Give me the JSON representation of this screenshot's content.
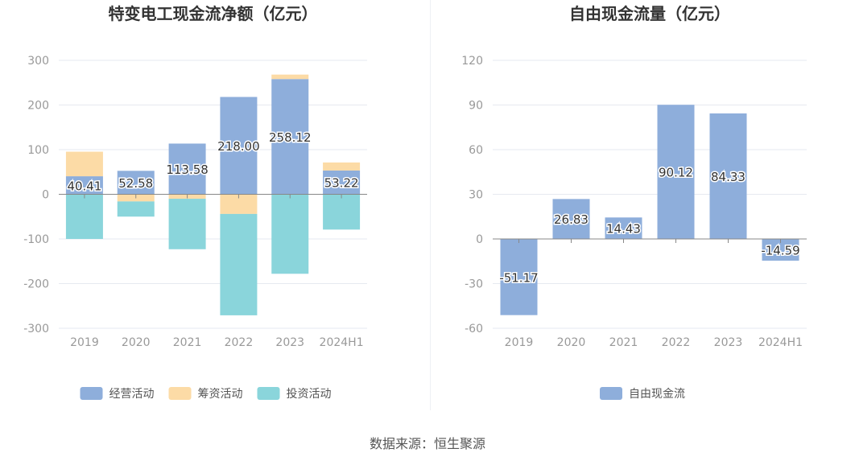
{
  "source_label": "数据来源：恒生聚源",
  "colors": {
    "operating": "#8eaedb",
    "financing": "#fcdba6",
    "investing": "#8ad5db",
    "free_cash": "#8eaedb",
    "grid": "#e6e9f0",
    "axis_label": "#999999",
    "zero_line": "#888888"
  },
  "chart_data": [
    {
      "type": "bar",
      "stacked": true,
      "title": "特变电工现金流净额（亿元）",
      "categories": [
        "2019",
        "2020",
        "2021",
        "2022",
        "2023",
        "2024H1"
      ],
      "ylim": [
        -300,
        300
      ],
      "yticks": [
        300,
        200,
        100,
        0,
        -100,
        -200,
        -300
      ],
      "grid": true,
      "legend_position": "bottom",
      "series": [
        {
          "name": "经营活动",
          "values": [
            40.41,
            52.58,
            113.58,
            218.0,
            258.12,
            53.22
          ],
          "labels": [
            "40.41",
            "52.58",
            "113.58",
            "218.00",
            "258.12",
            "53.22"
          ]
        },
        {
          "name": "筹资活动",
          "values": [
            55,
            -16,
            -10,
            -44,
            10,
            18
          ]
        },
        {
          "name": "投资活动",
          "values": [
            -100,
            -34,
            -113,
            -227,
            -178,
            -79
          ]
        }
      ]
    },
    {
      "type": "bar",
      "title": "自由现金流量（亿元）",
      "categories": [
        "2019",
        "2020",
        "2021",
        "2022",
        "2023",
        "2024H1"
      ],
      "ylim": [
        -60,
        120
      ],
      "yticks": [
        120,
        90,
        60,
        30,
        0,
        -30,
        -60
      ],
      "grid": true,
      "legend_position": "bottom",
      "series": [
        {
          "name": "自由现金流",
          "values": [
            -51.17,
            26.83,
            14.43,
            90.12,
            84.33,
            -14.59
          ],
          "labels": [
            "-51.17",
            "26.83",
            "14.43",
            "90.12",
            "84.33",
            "-14.59"
          ]
        }
      ]
    }
  ]
}
